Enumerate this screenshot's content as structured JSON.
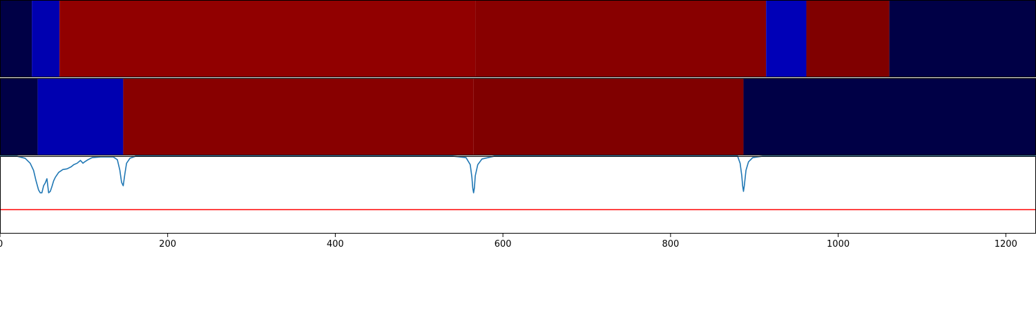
{
  "chart_data": [
    {
      "type": "heatmap",
      "segments": [
        {
          "start": 0,
          "end": 38,
          "color": "#000046"
        },
        {
          "start": 38,
          "end": 71,
          "color": "#0000b0"
        },
        {
          "start": 71,
          "end": 567,
          "color": "#910000"
        },
        {
          "start": 567,
          "end": 914,
          "color": "#880000"
        },
        {
          "start": 914,
          "end": 962,
          "color": "#0000b7"
        },
        {
          "start": 962,
          "end": 1061,
          "color": "#800000"
        },
        {
          "start": 1061,
          "end": 1236,
          "color": "#000046"
        }
      ]
    },
    {
      "type": "heatmap",
      "segments": [
        {
          "start": 0,
          "end": 45,
          "color": "#000046"
        },
        {
          "start": 45,
          "end": 147,
          "color": "#0000b0"
        },
        {
          "start": 147,
          "end": 565,
          "color": "#880000"
        },
        {
          "start": 565,
          "end": 887,
          "color": "#800000"
        },
        {
          "start": 887,
          "end": 1236,
          "color": "#000046"
        }
      ]
    },
    {
      "type": "line",
      "xlim": [
        0,
        1236
      ],
      "ylim": [
        -1.1,
        0
      ],
      "x_ticks": [
        0,
        200,
        400,
        600,
        800,
        1000,
        1200
      ],
      "x_tick_labels": [
        "0",
        "200",
        "400",
        "600",
        "800",
        "1000",
        "1200"
      ],
      "series": [
        {
          "color": "#1f77b4",
          "x": [
            0,
            20,
            30,
            36,
            40,
            43,
            46,
            48,
            50,
            52,
            54,
            56,
            58,
            60,
            62,
            64,
            66,
            70,
            75,
            80,
            85,
            88,
            92,
            96,
            99,
            101,
            105,
            110,
            120,
            135,
            140,
            143,
            145,
            147,
            149,
            151,
            155,
            162,
            200,
            540,
            556,
            561,
            563,
            564,
            565,
            566,
            567,
            570,
            575,
            590,
            600,
            880,
            883,
            885,
            886,
            887,
            888,
            890,
            893,
            898,
            910,
            1236
          ],
          "y": [
            0,
            0,
            -0.03,
            -0.1,
            -0.2,
            -0.35,
            -0.48,
            -0.52,
            -0.52,
            -0.42,
            -0.38,
            -0.32,
            -0.52,
            -0.5,
            -0.43,
            -0.35,
            -0.3,
            -0.23,
            -0.19,
            -0.18,
            -0.15,
            -0.12,
            -0.1,
            -0.06,
            -0.1,
            -0.08,
            -0.05,
            -0.02,
            -0.01,
            -0.01,
            -0.05,
            -0.2,
            -0.37,
            -0.42,
            -0.25,
            -0.1,
            -0.03,
            0,
            0,
            0,
            -0.02,
            -0.12,
            -0.3,
            -0.45,
            -0.52,
            -0.45,
            -0.28,
            -0.12,
            -0.04,
            0,
            0,
            0,
            -0.1,
            -0.28,
            -0.42,
            -0.5,
            -0.42,
            -0.2,
            -0.08,
            -0.02,
            0,
            0
          ]
        },
        {
          "color": "#ff0000",
          "x": [
            0,
            1236
          ],
          "y": [
            -0.76,
            -0.76
          ]
        }
      ]
    }
  ]
}
